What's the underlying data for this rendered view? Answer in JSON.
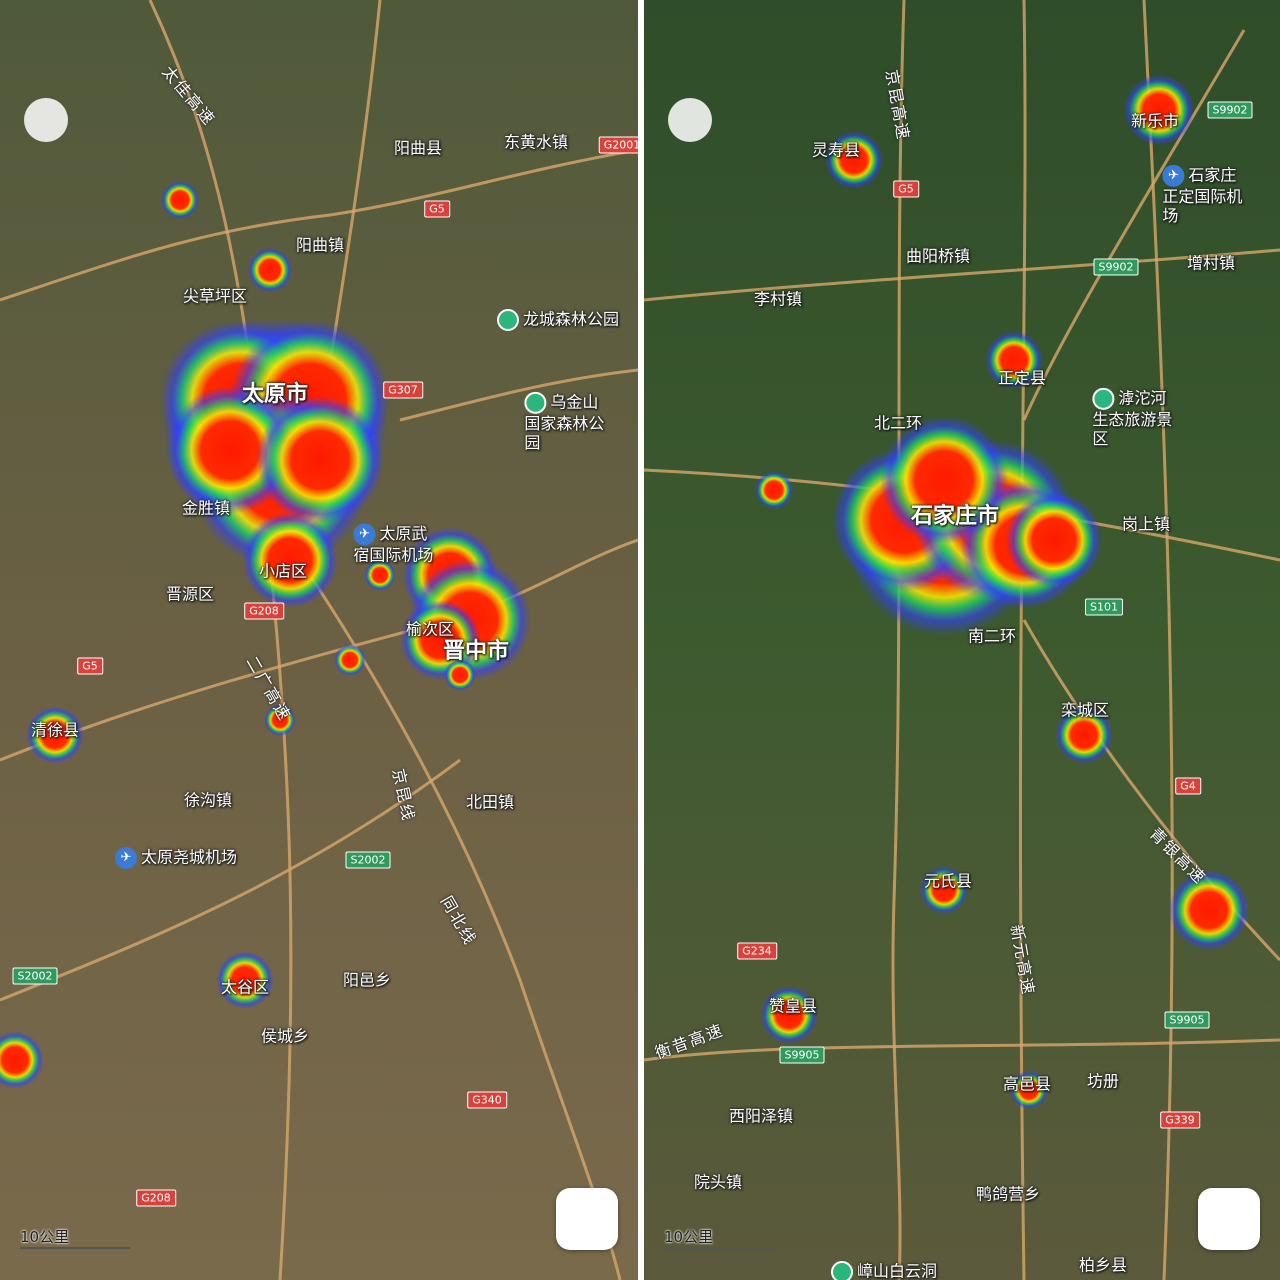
{
  "left_map": {
    "big_labels": [
      "太原市",
      "晋中市"
    ],
    "labels": [
      "阳曲县",
      "东黄水镇",
      "阳曲镇",
      "尖草坪区",
      "金胜镇",
      "小店区",
      "晋源区",
      "榆次区",
      "清徐县",
      "徐沟镇",
      "北田镇",
      "太谷区",
      "阳邑乡",
      "侯城乡"
    ],
    "pois": [
      "龙城森林公园",
      "乌金山国家森林公园"
    ],
    "airports": [
      "太原武宿国际机场",
      "太原尧城机场"
    ],
    "road_names": [
      "太佳高速",
      "二广高速",
      "京昆线",
      "同北线"
    ],
    "road_shields": [
      "G5",
      "G2001",
      "G307",
      "G208",
      "G5",
      "S2002",
      "S2002",
      "G340",
      "G208"
    ],
    "scale": "10公里"
  },
  "right_map": {
    "big_labels": [
      "石家庄市"
    ],
    "labels": [
      "灵寿县",
      "新乐市",
      "曲阳桥镇",
      "李村镇",
      "增村镇",
      "正定县",
      "北二环",
      "岗上镇",
      "南二环",
      "栾城区",
      "元氏县",
      "赞皇县",
      "高邑县",
      "坊册",
      "西阳泽镇",
      "院头镇",
      "鸭鸽营乡",
      "柏乡县"
    ],
    "pois": [
      "滹沱河生态旅游景区",
      "嶂山白云洞"
    ],
    "airports": [
      "石家庄正定国际机场"
    ],
    "road_names": [
      "京昆高速",
      "新元高速",
      "青银高速",
      "衡昔高速"
    ],
    "road_shields": [
      "G5",
      "S9902",
      "S9902",
      "S101",
      "G4",
      "G234",
      "S9905",
      "S9905",
      "G339"
    ],
    "scale": "10公里"
  }
}
